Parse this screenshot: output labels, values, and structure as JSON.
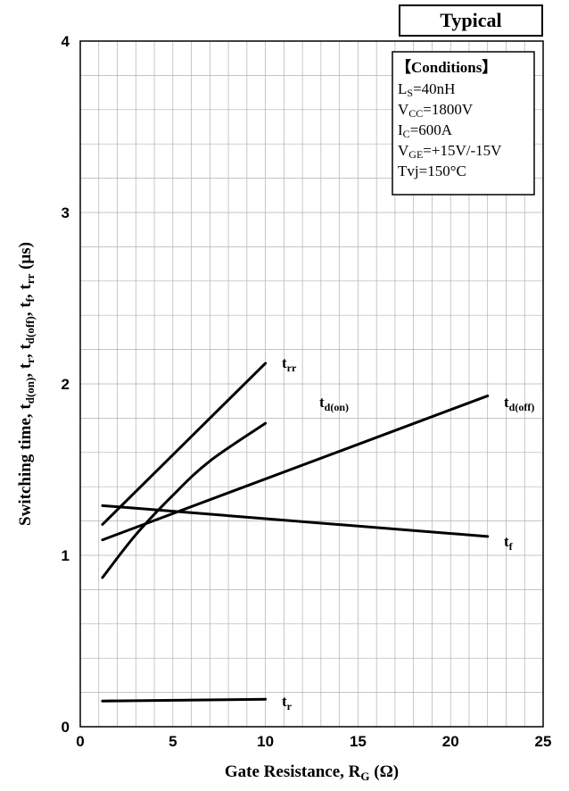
{
  "badge": "Typical",
  "conditions": {
    "title": "【Conditions】",
    "lines": [
      {
        "main": "L",
        "sub": "S",
        "rest": "=40nH"
      },
      {
        "main": "V",
        "sub": "CC",
        "rest": "=1800V"
      },
      {
        "main": "I",
        "sub": "C",
        "rest": "=600A"
      },
      {
        "main": "V",
        "sub": "GE",
        "rest": "=+15V/-15V"
      },
      {
        "main": "Tvj=150°C",
        "sub": "",
        "rest": ""
      }
    ]
  },
  "chart_data": {
    "type": "line",
    "xlabel": {
      "text": "Gate Resistance, R",
      "sub": "G",
      "after": " (Ω)"
    },
    "ylabel": [
      {
        "t": "Switching time, t"
      },
      {
        "t": "d(on)",
        "s": true
      },
      {
        "t": ", t"
      },
      {
        "t": "r",
        "s": true
      },
      {
        "t": ", t"
      },
      {
        "t": "d(off)",
        "s": true
      },
      {
        "t": ", t"
      },
      {
        "t": "f",
        "s": true
      },
      {
        "t": ", t"
      },
      {
        "t": "rr",
        "s": true
      },
      {
        "t": " (μs)"
      }
    ],
    "xlim": [
      0,
      25
    ],
    "ylim": [
      0,
      4
    ],
    "xticks": [
      0,
      5,
      10,
      15,
      20,
      25
    ],
    "yticks": [
      0,
      1,
      2,
      3,
      4
    ],
    "grid": true,
    "series": [
      {
        "label": {
          "main": "t",
          "sub": "rr"
        },
        "x": [
          1.2,
          10
        ],
        "y": [
          1.18,
          2.12
        ],
        "curve": false
      },
      {
        "label": {
          "main": "t",
          "sub": "d(on)"
        },
        "x": [
          1.2,
          3,
          5,
          7,
          10
        ],
        "y": [
          0.87,
          1.12,
          1.35,
          1.55,
          1.77
        ],
        "curve": true
      },
      {
        "label": {
          "main": "t",
          "sub": "d(off)"
        },
        "x": [
          1.2,
          22
        ],
        "y": [
          1.09,
          1.93
        ],
        "curve": false
      },
      {
        "label": {
          "main": "t",
          "sub": "f"
        },
        "x": [
          1.2,
          22
        ],
        "y": [
          1.29,
          1.11
        ],
        "curve": false
      },
      {
        "label": {
          "main": "t",
          "sub": "r"
        },
        "x": [
          1.2,
          10
        ],
        "y": [
          0.15,
          0.16
        ],
        "curve": false
      }
    ]
  }
}
